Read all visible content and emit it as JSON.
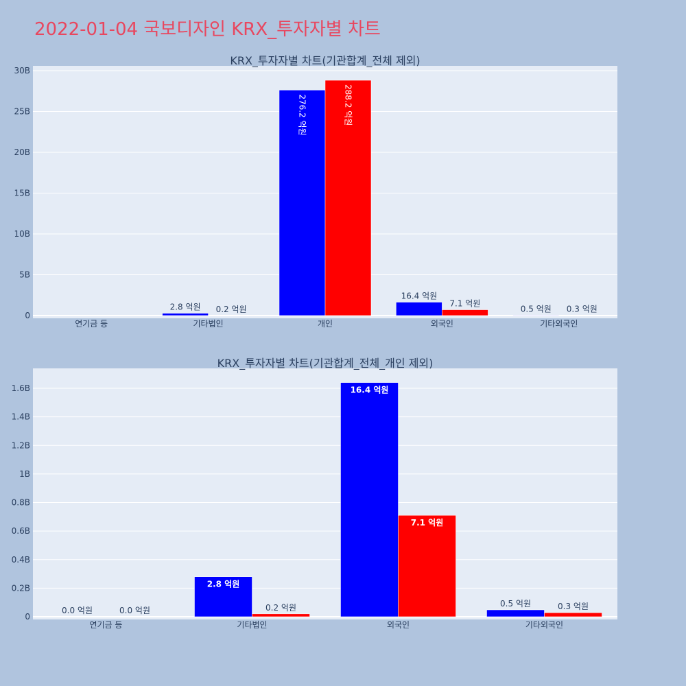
{
  "page": {
    "title": "2022-01-04 국보디자인 KRX_투자자별 차트"
  },
  "colors": {
    "background": "#b0c4de",
    "plot_bg": "#e5ecf6",
    "series_buy": "#0000ff",
    "series_sell": "#ff0000",
    "title": "#e8475f",
    "text": "#2a3f5f"
  },
  "chart_data": [
    {
      "type": "bar",
      "title": "KRX_투자자별 차트(기관합계_전체 제외)",
      "categories": [
        "연기금 등",
        "기타법인",
        "개인",
        "외국인",
        "기타외국인"
      ],
      "series": [
        {
          "color": "#0000ff",
          "values": [
            0,
            280000000,
            27620000000,
            1640000000,
            48000000
          ],
          "labels": [
            "",
            "2.8 억원",
            "276.2 억원",
            "16.4 억원",
            "0.5 억원"
          ],
          "label_inside": [
            false,
            false,
            true,
            false,
            false
          ]
        },
        {
          "color": "#ff0000",
          "values": [
            0,
            20000000,
            28820000000,
            710000000,
            28000000
          ],
          "labels": [
            "",
            "0.2 억원",
            "288.2 억원",
            "7.1 억원",
            "0.3 억원"
          ],
          "label_inside": [
            false,
            false,
            true,
            false,
            false
          ]
        }
      ],
      "yticks": [
        0,
        5000000000,
        10000000000,
        15000000000,
        20000000000,
        25000000000,
        30000000000
      ],
      "ytick_labels": [
        "0",
        "5B",
        "10B",
        "15B",
        "20B",
        "25B",
        "30B"
      ],
      "ylim": [
        0,
        30000000000
      ],
      "grid": true,
      "legend": "none"
    },
    {
      "type": "bar",
      "title": "KRX_투자자별 차트(기관합계_전체_개인 제외)",
      "categories": [
        "연기금 등",
        "기타법인",
        "외국인",
        "기타외국인"
      ],
      "series": [
        {
          "color": "#0000ff",
          "values": [
            0,
            280000000,
            1640000000,
            48000000
          ],
          "labels": [
            "0.0 억원",
            "2.8 억원",
            "16.4 억원",
            "0.5 억원"
          ],
          "label_inside": [
            false,
            true,
            true,
            false
          ]
        },
        {
          "color": "#ff0000",
          "values": [
            0,
            20000000,
            710000000,
            28000000
          ],
          "labels": [
            "0.0 억원",
            "0.2 억원",
            "7.1 억원",
            "0.3 억원"
          ],
          "label_inside": [
            false,
            false,
            true,
            false
          ]
        }
      ],
      "yticks": [
        0,
        200000000,
        400000000,
        600000000,
        800000000,
        1000000000,
        1200000000,
        1400000000,
        1600000000
      ],
      "ytick_labels": [
        "0",
        "0.2B",
        "0.4B",
        "0.6B",
        "0.8B",
        "1B",
        "1.2B",
        "1.4B",
        "1.6B"
      ],
      "ylim": [
        0,
        1650000000
      ],
      "grid": true,
      "legend": "none"
    }
  ]
}
